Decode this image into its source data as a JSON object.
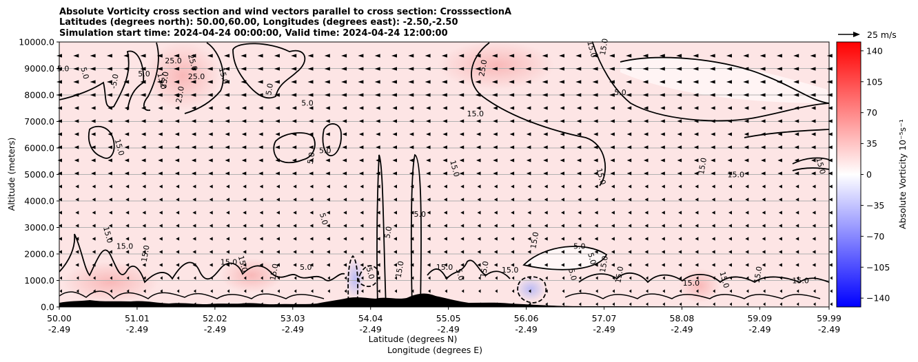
{
  "chart_data": {
    "type": "contour",
    "title_lines": [
      "Absolute Vorticity cross section and wind vectors parallel to cross section: CrosssectionA",
      "Latitudes (degrees north): 50.00,60.00, Longitudes (degrees east): -2.50,-2.50",
      "Simulation start time: 2024-04-24 00:00:00, Valid time: 2024-04-24 12:00:00"
    ],
    "xlabel_lines": [
      "Latitude (degrees N)",
      "Longitude (degrees E)"
    ],
    "ylabel": "Altitude (meters)",
    "xlim": [
      50.0,
      59.99
    ],
    "ylim": [
      0,
      10000
    ],
    "x_ticks": [
      {
        "v": 50.0,
        "lat": "50.00",
        "lon": "-2.49"
      },
      {
        "v": 51.01,
        "lat": "51.01",
        "lon": "-2.49"
      },
      {
        "v": 52.02,
        "lat": "52.02",
        "lon": "-2.49"
      },
      {
        "v": 53.03,
        "lat": "53.03",
        "lon": "-2.49"
      },
      {
        "v": 54.04,
        "lat": "54.04",
        "lon": "-2.49"
      },
      {
        "v": 55.05,
        "lat": "55.05",
        "lon": "-2.49"
      },
      {
        "v": 56.06,
        "lat": "56.06",
        "lon": "-2.49"
      },
      {
        "v": 57.07,
        "lat": "57.07",
        "lon": "-2.49"
      },
      {
        "v": 58.08,
        "lat": "58.08",
        "lon": "-2.49"
      },
      {
        "v": 59.09,
        "lat": "59.09",
        "lon": "-2.49"
      },
      {
        "v": 59.99,
        "lat": "59.99",
        "lon": "-2.49"
      }
    ],
    "y_ticks": [
      {
        "v": 0,
        "label": "0.0"
      },
      {
        "v": 1000,
        "label": "1000.0"
      },
      {
        "v": 2000,
        "label": "2000.0"
      },
      {
        "v": 3000,
        "label": "3000.0"
      },
      {
        "v": 4000,
        "label": "4000.0"
      },
      {
        "v": 5000,
        "label": "5000.0"
      },
      {
        "v": 6000,
        "label": "6000.0"
      },
      {
        "v": 7000,
        "label": "7000.0"
      },
      {
        "v": 8000,
        "label": "8000.0"
      },
      {
        "v": 9000,
        "label": "9000.0"
      },
      {
        "v": 10000,
        "label": "10000.0"
      }
    ],
    "horizontal_grid": true,
    "colorbar": {
      "label": "Absolute Vorticity 10⁻⁵s⁻¹",
      "range": [
        -150,
        150
      ],
      "ticks": [
        {
          "v": 140,
          "label": "140"
        },
        {
          "v": 105,
          "label": "105"
        },
        {
          "v": 70,
          "label": "70"
        },
        {
          "v": 35,
          "label": "35"
        },
        {
          "v": 0,
          "label": "0"
        },
        {
          "v": -35,
          "label": "−35"
        },
        {
          "v": -70,
          "label": "−70"
        },
        {
          "v": -105,
          "label": "−105"
        },
        {
          "v": -140,
          "label": "−140"
        }
      ],
      "colors": {
        "negative": "#0000ff",
        "zero": "#ffffff",
        "positive": "#ff0000"
      }
    },
    "quiver_key": {
      "label": "25 m/s",
      "speed": 25
    },
    "contour_levels": [
      -15.0,
      -5.0,
      5.0,
      15.0,
      25.0
    ],
    "contour_labels": [
      {
        "x": 50.05,
        "y": 8900,
        "text": "5.0"
      },
      {
        "x": 50.3,
        "y": 8800,
        "text": "5.0"
      },
      {
        "x": 50.75,
        "y": 8500,
        "text": "-5.0"
      },
      {
        "x": 51.1,
        "y": 8700,
        "text": "5.0"
      },
      {
        "x": 51.3,
        "y": 8500,
        "text": "15.0"
      },
      {
        "x": 51.4,
        "y": 8550,
        "text": "25.0"
      },
      {
        "x": 51.48,
        "y": 9200,
        "text": "25.0"
      },
      {
        "x": 51.7,
        "y": 9200,
        "text": "25.0"
      },
      {
        "x": 51.6,
        "y": 8000,
        "text": "25.0"
      },
      {
        "x": 51.78,
        "y": 8600,
        "text": "25.0"
      },
      {
        "x": 52.1,
        "y": 8700,
        "text": "15.0"
      },
      {
        "x": 52.76,
        "y": 8200,
        "text": "5.0"
      },
      {
        "x": 53.22,
        "y": 7600,
        "text": "5.0"
      },
      {
        "x": 50.75,
        "y": 6000,
        "text": "15.0"
      },
      {
        "x": 53.3,
        "y": 5600,
        "text": "5.0"
      },
      {
        "x": 53.45,
        "y": 5800,
        "text": "5.0"
      },
      {
        "x": 53.4,
        "y": 3300,
        "text": "5.0"
      },
      {
        "x": 54.3,
        "y": 2800,
        "text": "5.0"
      },
      {
        "x": 54.68,
        "y": 3400,
        "text": "5.0"
      },
      {
        "x": 55.1,
        "y": 5200,
        "text": "15.0"
      },
      {
        "x": 55.53,
        "y": 9000,
        "text": "25.0"
      },
      {
        "x": 55.4,
        "y": 7200,
        "text": "15.0"
      },
      {
        "x": 56.88,
        "y": 9700,
        "text": "15.0"
      },
      {
        "x": 57.1,
        "y": 9800,
        "text": "15.0"
      },
      {
        "x": 57.28,
        "y": 8000,
        "text": "5.0"
      },
      {
        "x": 57.0,
        "y": 4900,
        "text": "15.0"
      },
      {
        "x": 58.38,
        "y": 5300,
        "text": "15.0"
      },
      {
        "x": 58.78,
        "y": 4900,
        "text": "15.0"
      },
      {
        "x": 59.85,
        "y": 5300,
        "text": "15.0"
      },
      {
        "x": 56.2,
        "y": 2500,
        "text": "15.0"
      },
      {
        "x": 56.75,
        "y": 2200,
        "text": "5.0"
      },
      {
        "x": 56.88,
        "y": 1800,
        "text": "5.0"
      },
      {
        "x": 57.1,
        "y": 1600,
        "text": "15.0"
      },
      {
        "x": 50.85,
        "y": 2200,
        "text": "15.0"
      },
      {
        "x": 50.6,
        "y": 2700,
        "text": "15.0"
      },
      {
        "x": 51.15,
        "y": 2000,
        "text": "15.0"
      },
      {
        "x": 52.2,
        "y": 1600,
        "text": "15.0"
      },
      {
        "x": 52.35,
        "y": 1600,
        "text": "15.0"
      },
      {
        "x": 52.82,
        "y": 1300,
        "text": "15.0"
      },
      {
        "x": 53.2,
        "y": 1400,
        "text": "5.0"
      },
      {
        "x": 54.0,
        "y": 1300,
        "text": "-5.0"
      },
      {
        "x": 54.45,
        "y": 1400,
        "text": "15.0"
      },
      {
        "x": 55.0,
        "y": 1400,
        "text": "15.0"
      },
      {
        "x": 55.17,
        "y": 1200,
        "text": "5.0"
      },
      {
        "x": 55.55,
        "y": 1400,
        "text": "15.0"
      },
      {
        "x": 55.85,
        "y": 1300,
        "text": "15.0"
      },
      {
        "x": 56.63,
        "y": 1200,
        "text": "5.0"
      },
      {
        "x": 57.3,
        "y": 1200,
        "text": "15.0"
      },
      {
        "x": 58.2,
        "y": 800,
        "text": "15.0"
      },
      {
        "x": 58.6,
        "y": 1000,
        "text": "15.0"
      },
      {
        "x": 59.1,
        "y": 1200,
        "text": "15.0"
      },
      {
        "x": 59.62,
        "y": 900,
        "text": "15.0"
      }
    ]
  }
}
